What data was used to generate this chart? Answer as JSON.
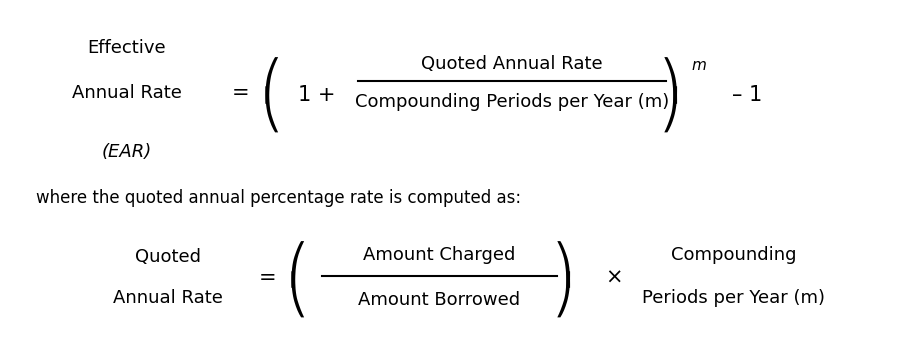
{
  "background_color": "#ffffff",
  "text_color": "#000000",
  "figsize": [
    9.24,
    3.52
  ],
  "dpi": 100,
  "formula1_line1": "Effective",
  "formula1_line2": "Annual Rate",
  "formula1_line3": "(EAR)",
  "equals1": "=",
  "frac_num": "Quoted Annual Rate",
  "frac_den": "Compounding Periods per Year (m)",
  "superscript_m": "m",
  "minus_one": "– 1",
  "where_text": "where the quoted annual percentage rate is computed as:",
  "formula2_line1": "Quoted",
  "formula2_line2": "Annual Rate",
  "equals2": "=",
  "frac2_num": "Amount Charged",
  "frac2_den": "Amount Borrowed",
  "times": "×",
  "rhs2_line1": "Compounding",
  "rhs2_line2": "Periods per Year (m)",
  "font_size_main": 13,
  "font_size_where": 12,
  "font_size_super": 11
}
